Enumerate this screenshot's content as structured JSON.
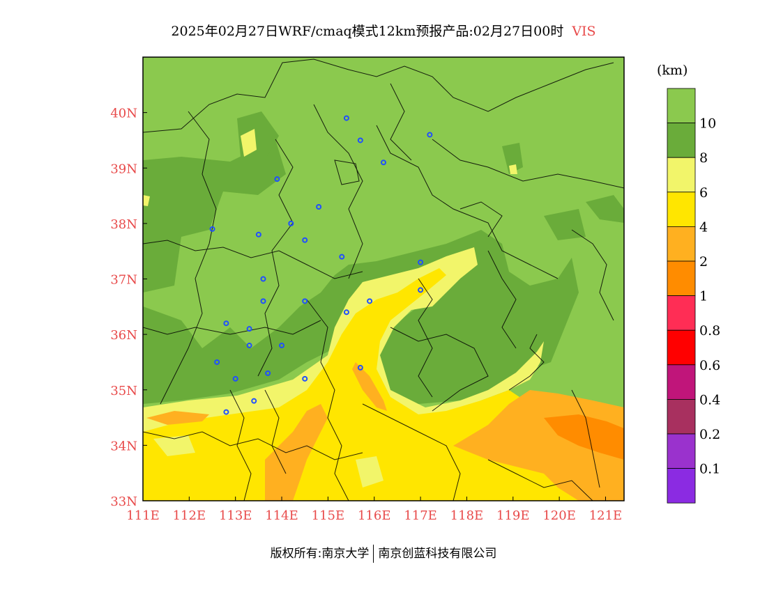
{
  "title": "2025年02月27日WRF/cmaq模式12km预报产品:02月27日00时",
  "variable": "VIS",
  "unit": "(km)",
  "credit": {
    "left": "版权所有:南京大学",
    "right": "南京创蓝科技有限公司"
  },
  "map": {
    "lon_range": [
      111,
      121.4
    ],
    "lat_range": [
      33,
      41
    ],
    "lon_ticks": [
      "111E",
      "112E",
      "113E",
      "114E",
      "115E",
      "116E",
      "117E",
      "118E",
      "119E",
      "120E",
      "121E"
    ],
    "lat_ticks": [
      "33N",
      "34N",
      "35N",
      "36N",
      "37N",
      "38N",
      "39N",
      "40N"
    ],
    "tick_color": "#e84a4a"
  },
  "colorbar": {
    "levels": [
      "0.1",
      "0.2",
      "0.4",
      "0.6",
      "0.8",
      "1",
      "2",
      "4",
      "6",
      "8",
      "10"
    ],
    "colors": [
      "#8b2be2",
      "#9a32cd",
      "#a8305f",
      "#c0157a",
      "#ff0000",
      "#ff2d55",
      "#ff8c00",
      "#ffb020",
      "#ffe600",
      "#f2f56a",
      "#6aac3a",
      "#8bc94e"
    ]
  },
  "chart_data": {
    "type": "heatmap",
    "title": "2025年02月27日WRF/cmaq模式12km预报产品:02月27日00时 VIS",
    "unit": "km",
    "x_ticks": [
      "111E",
      "112E",
      "113E",
      "114E",
      "115E",
      "116E",
      "117E",
      "118E",
      "119E",
      "120E",
      "121E"
    ],
    "y_ticks": [
      "33N",
      "34N",
      "35N",
      "36N",
      "37N",
      "38N",
      "39N",
      "40N"
    ],
    "xlim": [
      111,
      121.4
    ],
    "ylim": [
      33,
      41
    ],
    "color_levels": [
      0.1,
      0.2,
      0.4,
      0.6,
      0.8,
      1,
      2,
      4,
      6,
      8,
      10
    ],
    "station_points": [
      {
        "lon": 115.4,
        "lat": 39.9
      },
      {
        "lon": 115.7,
        "lat": 39.5
      },
      {
        "lon": 116.2,
        "lat": 39.1
      },
      {
        "lon": 117.2,
        "lat": 39.6
      },
      {
        "lon": 113.9,
        "lat": 38.8
      },
      {
        "lon": 114.8,
        "lat": 38.3
      },
      {
        "lon": 112.5,
        "lat": 37.9
      },
      {
        "lon": 113.5,
        "lat": 37.8
      },
      {
        "lon": 114.2,
        "lat": 38.0
      },
      {
        "lon": 114.5,
        "lat": 37.7
      },
      {
        "lon": 115.3,
        "lat": 37.4
      },
      {
        "lon": 117.0,
        "lat": 37.3
      },
      {
        "lon": 113.6,
        "lat": 37.0
      },
      {
        "lon": 113.6,
        "lat": 36.6
      },
      {
        "lon": 114.5,
        "lat": 36.6
      },
      {
        "lon": 115.4,
        "lat": 36.4
      },
      {
        "lon": 115.9,
        "lat": 36.6
      },
      {
        "lon": 117.0,
        "lat": 36.8
      },
      {
        "lon": 112.8,
        "lat": 36.2
      },
      {
        "lon": 113.3,
        "lat": 36.1
      },
      {
        "lon": 113.3,
        "lat": 35.8
      },
      {
        "lon": 114.0,
        "lat": 35.8
      },
      {
        "lon": 112.6,
        "lat": 35.5
      },
      {
        "lon": 113.0,
        "lat": 35.2
      },
      {
        "lon": 113.7,
        "lat": 35.3
      },
      {
        "lon": 114.5,
        "lat": 35.2
      },
      {
        "lon": 115.7,
        "lat": 35.4
      },
      {
        "lon": 113.4,
        "lat": 34.8
      },
      {
        "lon": 112.8,
        "lat": 34.6
      }
    ]
  }
}
